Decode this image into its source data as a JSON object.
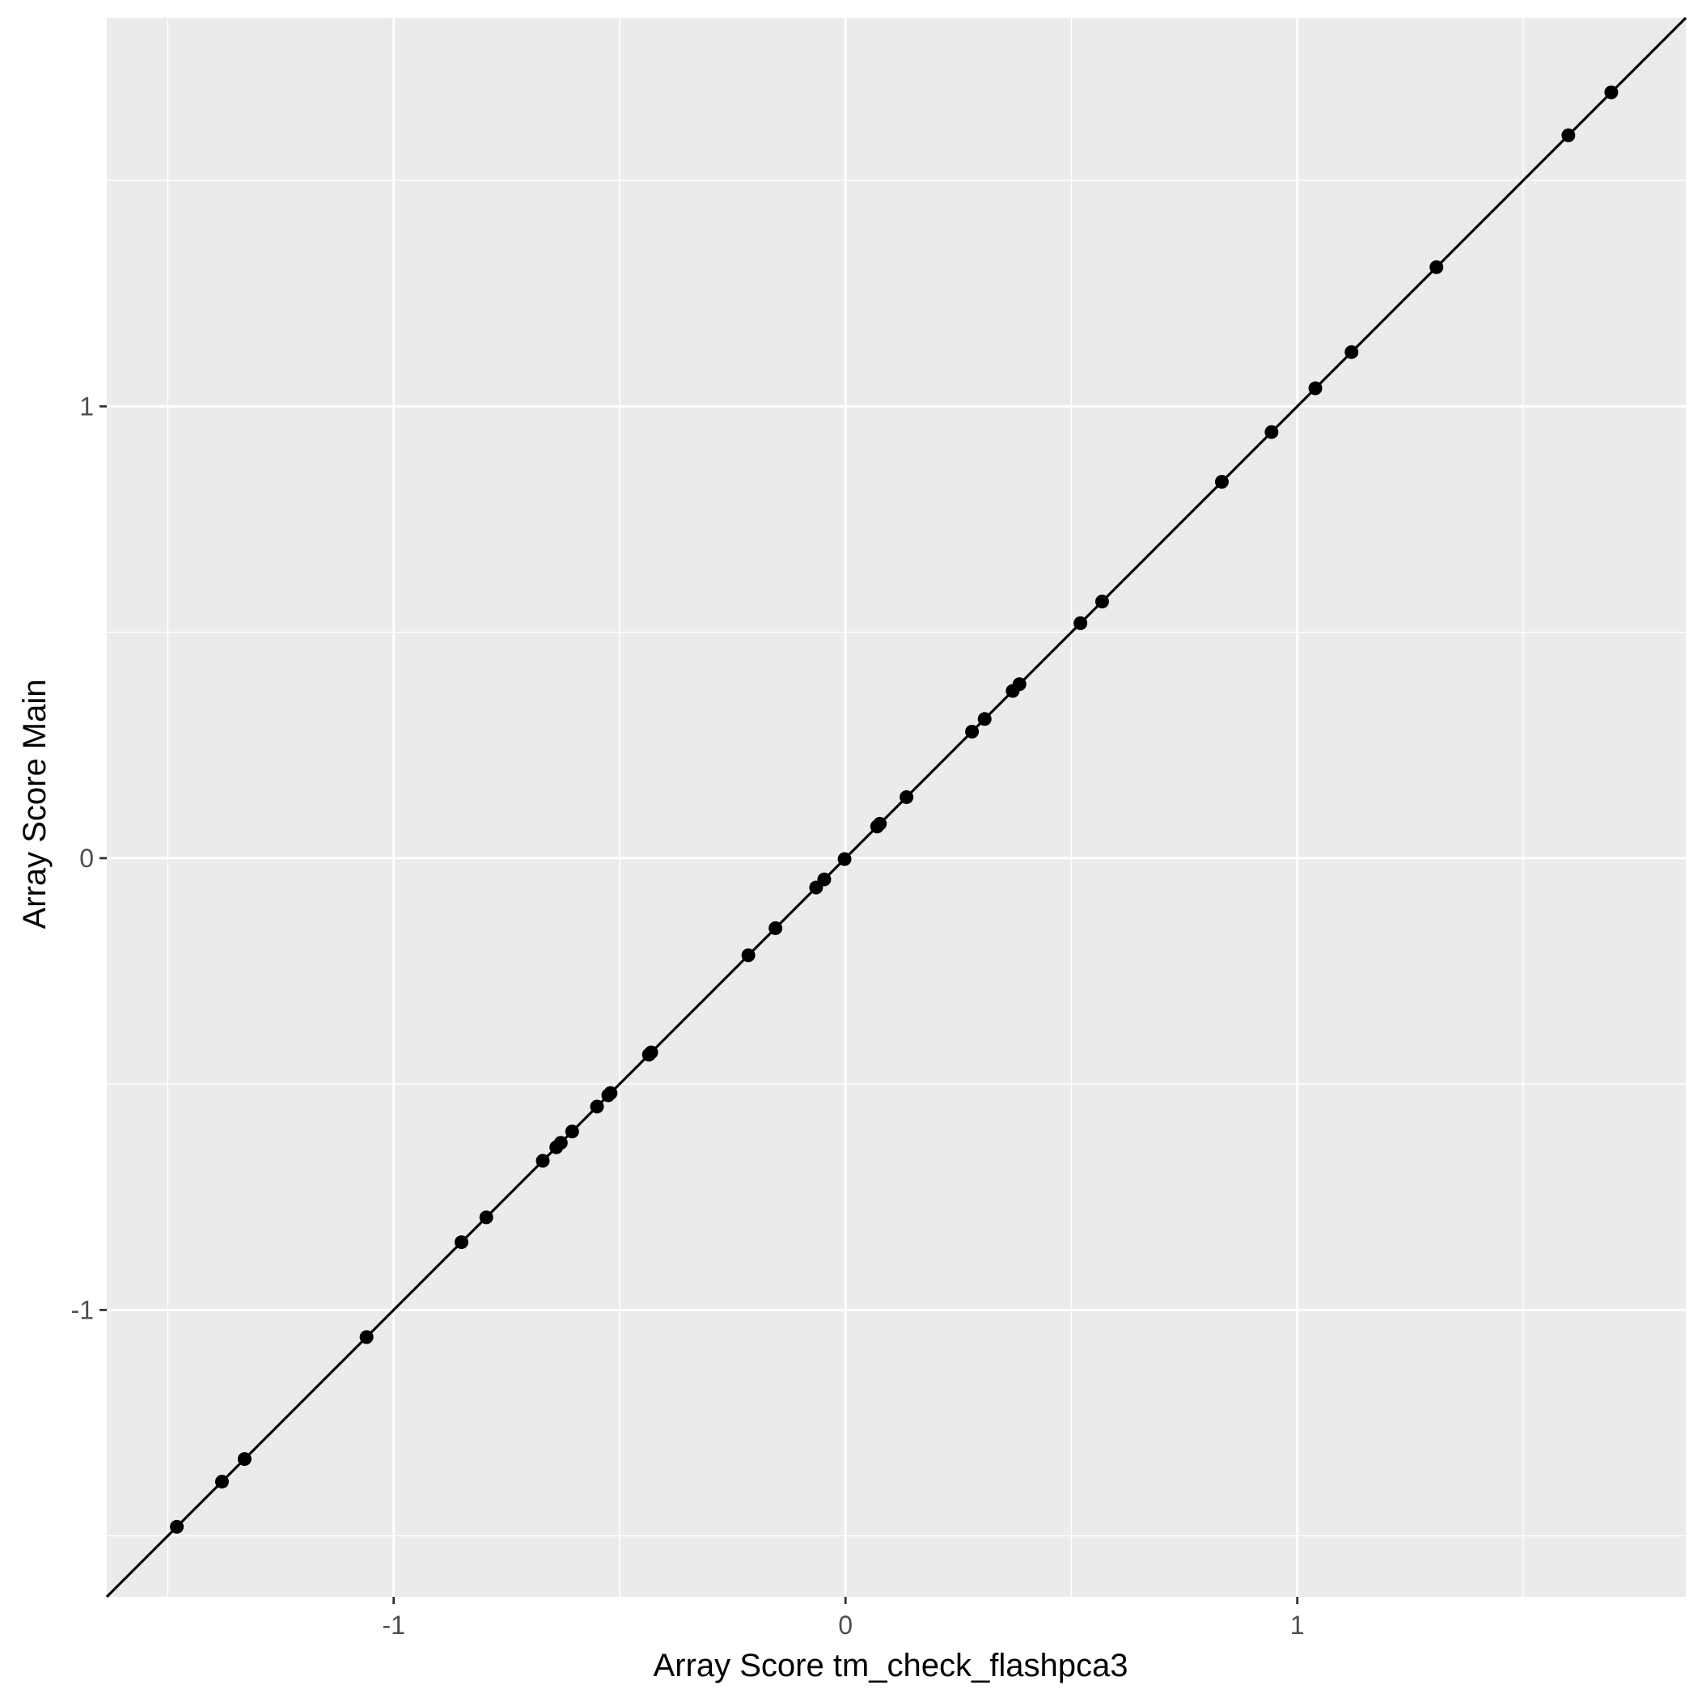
{
  "chart_data": {
    "type": "scatter",
    "title": "",
    "xlabel": "Array Score tm_check_flashpca3",
    "ylabel": "Array Score Main",
    "xlim": [
      -1.635,
      1.86
    ],
    "ylim": [
      -1.635,
      1.86
    ],
    "x_ticks": [
      -1,
      0,
      1
    ],
    "x_tick_labels": [
      "-1",
      "0",
      "1"
    ],
    "y_ticks": [
      -1,
      0,
      1
    ],
    "y_tick_labels": [
      "-1",
      "0",
      "1"
    ],
    "minor_gridlines": [
      -1.5,
      -0.5,
      0.5,
      1.5
    ],
    "grid": true,
    "legend": "none",
    "colors": {
      "panel_background": "#EBEBEB",
      "gridline": "#FFFFFF",
      "points": "#000000",
      "reference_line": "#000000",
      "axis_text": "#4D4D4D",
      "axis_title": "#000000"
    },
    "reference_line": {
      "slope": 1,
      "intercept": 0
    },
    "points": [
      {
        "x": -1.48,
        "y": -1.48
      },
      {
        "x": -1.38,
        "y": -1.38
      },
      {
        "x": -1.33,
        "y": -1.33
      },
      {
        "x": -1.06,
        "y": -1.06
      },
      {
        "x": -0.85,
        "y": -0.85
      },
      {
        "x": -0.795,
        "y": -0.795
      },
      {
        "x": -0.67,
        "y": -0.67
      },
      {
        "x": -0.64,
        "y": -0.64
      },
      {
        "x": -0.63,
        "y": -0.63
      },
      {
        "x": -0.605,
        "y": -0.605
      },
      {
        "x": -0.55,
        "y": -0.55
      },
      {
        "x": -0.525,
        "y": -0.525
      },
      {
        "x": -0.52,
        "y": -0.52
      },
      {
        "x": -0.435,
        "y": -0.435
      },
      {
        "x": -0.43,
        "y": -0.43
      },
      {
        "x": -0.215,
        "y": -0.215
      },
      {
        "x": -0.155,
        "y": -0.155
      },
      {
        "x": -0.065,
        "y": -0.065
      },
      {
        "x": -0.047,
        "y": -0.047
      },
      {
        "x": -0.002,
        "y": -0.002
      },
      {
        "x": 0.07,
        "y": 0.07
      },
      {
        "x": 0.076,
        "y": 0.076
      },
      {
        "x": 0.135,
        "y": 0.135
      },
      {
        "x": 0.28,
        "y": 0.28
      },
      {
        "x": 0.308,
        "y": 0.308
      },
      {
        "x": 0.37,
        "y": 0.37
      },
      {
        "x": 0.385,
        "y": 0.385
      },
      {
        "x": 0.52,
        "y": 0.52
      },
      {
        "x": 0.568,
        "y": 0.568
      },
      {
        "x": 0.833,
        "y": 0.833
      },
      {
        "x": 0.943,
        "y": 0.943
      },
      {
        "x": 1.04,
        "y": 1.04
      },
      {
        "x": 1.12,
        "y": 1.12
      },
      {
        "x": 1.308,
        "y": 1.308
      },
      {
        "x": 1.6,
        "y": 1.6
      },
      {
        "x": 1.695,
        "y": 1.695
      }
    ]
  }
}
